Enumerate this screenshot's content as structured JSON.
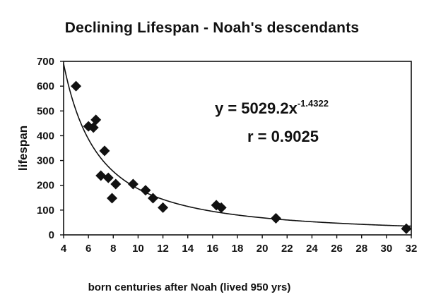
{
  "chart_data": {
    "type": "scatter",
    "title": "Declining Lifespan - Noah's descendants",
    "xlabel": "born centuries after Noah (lived 950 yrs)",
    "ylabel": "lifespan",
    "xlim": [
      4,
      32
    ],
    "ylim": [
      0,
      700
    ],
    "x_ticks": [
      4,
      6,
      8,
      10,
      12,
      14,
      16,
      18,
      20,
      22,
      24,
      26,
      28,
      30,
      32
    ],
    "y_ticks": [
      0,
      100,
      200,
      300,
      400,
      500,
      600,
      700
    ],
    "grid": false,
    "marker": "diamond",
    "points": [
      {
        "x": 5.0,
        "y": 600
      },
      {
        "x": 6.0,
        "y": 438
      },
      {
        "x": 6.4,
        "y": 433
      },
      {
        "x": 6.6,
        "y": 464
      },
      {
        "x": 7.0,
        "y": 239
      },
      {
        "x": 7.3,
        "y": 339
      },
      {
        "x": 7.6,
        "y": 230
      },
      {
        "x": 7.9,
        "y": 148
      },
      {
        "x": 8.2,
        "y": 205
      },
      {
        "x": 9.6,
        "y": 205
      },
      {
        "x": 10.6,
        "y": 180
      },
      {
        "x": 11.2,
        "y": 148
      },
      {
        "x": 12.0,
        "y": 110
      },
      {
        "x": 16.3,
        "y": 120
      },
      {
        "x": 16.7,
        "y": 110
      },
      {
        "x": 21.1,
        "y": 67
      },
      {
        "x": 31.6,
        "y": 25
      }
    ],
    "trendline": {
      "type": "power",
      "coefficient": 5029.2,
      "exponent": -1.4322
    },
    "annotations": {
      "equation_prefix": "y = 5029.2x",
      "equation_exponent": "-1.4322",
      "r_value": "r = 0.9025"
    }
  }
}
